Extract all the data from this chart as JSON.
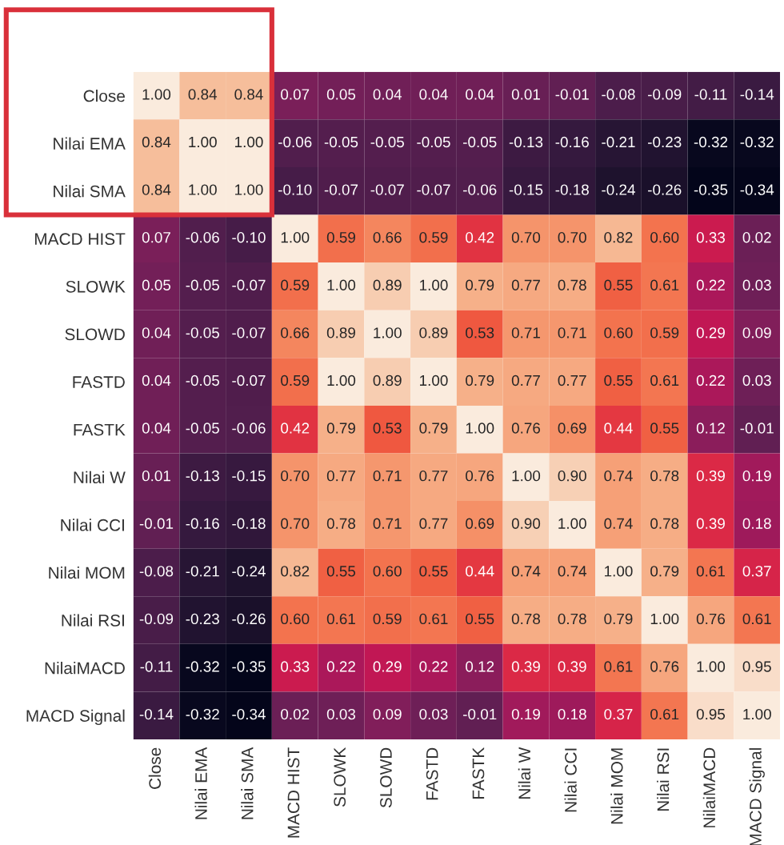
{
  "chart_data": {
    "type": "heatmap",
    "categories": [
      "Close",
      "Nilai EMA",
      "Nilai SMA",
      "MACD HIST",
      "SLOWK",
      "SLOWD",
      "FASTD",
      "FASTK",
      "Nilai W",
      "Nilai CCI",
      "Nilai MOM",
      "Nilai RSI",
      "NilaiMACD",
      "MACD Signal"
    ],
    "y_categories": [
      "Close",
      "Nilai EMA",
      "Nilai SMA",
      "MACD HIST",
      "SLOWK",
      "SLOWD",
      "FASTD",
      "FASTK",
      "Nilai W",
      "Nilai CCI",
      "Nilai MOM",
      "Nilai RSI",
      "NilaiMACD",
      "MACD Signal"
    ],
    "cells": [
      [
        1.0,
        0.84,
        0.84,
        0.07,
        0.05,
        0.04,
        0.04,
        0.04,
        0.01,
        -0.01,
        -0.08,
        -0.09,
        -0.11,
        -0.14
      ],
      [
        0.84,
        1.0,
        1.0,
        -0.06,
        -0.05,
        -0.05,
        -0.05,
        -0.05,
        -0.13,
        -0.16,
        -0.21,
        -0.23,
        -0.32,
        -0.32
      ],
      [
        0.84,
        1.0,
        1.0,
        -0.1,
        -0.07,
        -0.07,
        -0.07,
        -0.06,
        -0.15,
        -0.18,
        -0.24,
        -0.26,
        -0.35,
        -0.34
      ],
      [
        0.07,
        -0.06,
        -0.1,
        1.0,
        0.59,
        0.66,
        0.59,
        0.42,
        0.7,
        0.7,
        0.82,
        0.6,
        0.33,
        0.02
      ],
      [
        0.05,
        -0.05,
        -0.07,
        0.59,
        1.0,
        0.89,
        1.0,
        0.79,
        0.77,
        0.78,
        0.55,
        0.61,
        0.22,
        0.03
      ],
      [
        0.04,
        -0.05,
        -0.07,
        0.66,
        0.89,
        1.0,
        0.89,
        0.53,
        0.71,
        0.71,
        0.6,
        0.59,
        0.29,
        0.09
      ],
      [
        0.04,
        -0.05,
        -0.07,
        0.59,
        1.0,
        0.89,
        1.0,
        0.79,
        0.77,
        0.77,
        0.55,
        0.61,
        0.22,
        0.03
      ],
      [
        0.04,
        -0.05,
        -0.06,
        0.42,
        0.79,
        0.53,
        0.79,
        1.0,
        0.76,
        0.69,
        0.44,
        0.55,
        0.12,
        -0.01
      ],
      [
        0.01,
        -0.13,
        -0.15,
        0.7,
        0.77,
        0.71,
        0.77,
        0.76,
        1.0,
        0.9,
        0.74,
        0.78,
        0.39,
        0.19
      ],
      [
        -0.01,
        -0.16,
        -0.18,
        0.7,
        0.78,
        0.71,
        0.77,
        0.69,
        0.9,
        1.0,
        0.74,
        0.78,
        0.39,
        0.18
      ],
      [
        -0.08,
        -0.21,
        -0.24,
        0.82,
        0.55,
        0.6,
        0.55,
        0.44,
        0.74,
        0.74,
        1.0,
        0.79,
        0.61,
        0.37
      ],
      [
        -0.09,
        -0.23,
        -0.26,
        0.6,
        0.61,
        0.59,
        0.61,
        0.55,
        0.78,
        0.78,
        0.79,
        1.0,
        0.76,
        0.61
      ],
      [
        -0.11,
        -0.32,
        -0.35,
        0.33,
        0.22,
        0.29,
        0.22,
        0.12,
        0.39,
        0.39,
        0.61,
        0.76,
        1.0,
        0.95
      ],
      [
        -0.14,
        -0.32,
        -0.34,
        0.02,
        0.03,
        0.09,
        0.03,
        -0.01,
        0.19,
        0.18,
        0.37,
        0.61,
        0.95,
        1.0
      ]
    ],
    "cell_labels": [
      [
        "1.00",
        "0.84",
        "0.84",
        "0.07",
        "0.05",
        "0.04",
        "0.04",
        "0.04",
        "0.01",
        "-0.01",
        "-0.08",
        "-0.09",
        "-0.11",
        "-0.14"
      ],
      [
        "0.84",
        "1.00",
        "1.00",
        "-0.06",
        "-0.05",
        "-0.05",
        "-0.05",
        "-0.05",
        "-0.13",
        "-0.16",
        "-0.21",
        "-0.23",
        "-0.32",
        "-0.32"
      ],
      [
        "0.84",
        "1.00",
        "1.00",
        "-0.10",
        "-0.07",
        "-0.07",
        "-0.07",
        "-0.06",
        "-0.15",
        "-0.18",
        "-0.24",
        "-0.26",
        "-0.35",
        "-0.34"
      ],
      [
        "0.07",
        "-0.06",
        "-0.10",
        "1.00",
        "0.59",
        "0.66",
        "0.59",
        "0.42",
        "0.70",
        "0.70",
        "0.82",
        "0.60",
        "0.33",
        "0.02"
      ],
      [
        "0.05",
        "-0.05",
        "-0.07",
        "0.59",
        "1.00",
        "0.89",
        "1.00",
        "0.79",
        "0.77",
        "0.78",
        "0.55",
        "0.61",
        "0.22",
        "0.03"
      ],
      [
        "0.04",
        "-0.05",
        "-0.07",
        "0.66",
        "0.89",
        "1.00",
        "0.89",
        "0.53",
        "0.71",
        "0.71",
        "0.60",
        "0.59",
        "0.29",
        "0.09"
      ],
      [
        "0.04",
        "-0.05",
        "-0.07",
        "0.59",
        "1.00",
        "0.89",
        "1.00",
        "0.79",
        "0.77",
        "0.77",
        "0.55",
        "0.61",
        "0.22",
        "0.03"
      ],
      [
        "0.04",
        "-0.05",
        "-0.06",
        "0.42",
        "0.79",
        "0.53",
        "0.79",
        "1.00",
        "0.76",
        "0.69",
        "0.44",
        "0.55",
        "0.12",
        "-0.01"
      ],
      [
        "0.01",
        "-0.13",
        "-0.15",
        "0.70",
        "0.77",
        "0.71",
        "0.77",
        "0.76",
        "1.00",
        "0.90",
        "0.74",
        "0.78",
        "0.39",
        "0.19"
      ],
      [
        "-0.01",
        "-0.16",
        "-0.18",
        "0.70",
        "0.78",
        "0.71",
        "0.77",
        "0.69",
        "0.90",
        "1.00",
        "0.74",
        "0.78",
        "0.39",
        "0.18"
      ],
      [
        "-0.08",
        "-0.21",
        "-0.24",
        "0.82",
        "0.55",
        "0.60",
        "0.55",
        "0.44",
        "0.74",
        "0.74",
        "1.00",
        "0.79",
        "0.61",
        "0.37"
      ],
      [
        "-0.09",
        "-0.23",
        "-0.26",
        "0.60",
        "0.61",
        "0.59",
        "0.61",
        "0.55",
        "0.78",
        "0.78",
        "0.79",
        "1.00",
        "0.76",
        "0.61"
      ],
      [
        "-0.11",
        "-0.32",
        "-0.35",
        "0.33",
        "0.22",
        "0.29",
        "0.22",
        "0.12",
        "0.39",
        "0.39",
        "0.61",
        "0.76",
        "1.00",
        "0.95"
      ],
      [
        "-0.14",
        "-0.32",
        "-0.34",
        "0.02",
        "0.03",
        "0.09",
        "0.03",
        "-0.01",
        "0.19",
        "0.18",
        "0.37",
        "0.61",
        "0.95",
        "1.00"
      ]
    ]
  }
}
